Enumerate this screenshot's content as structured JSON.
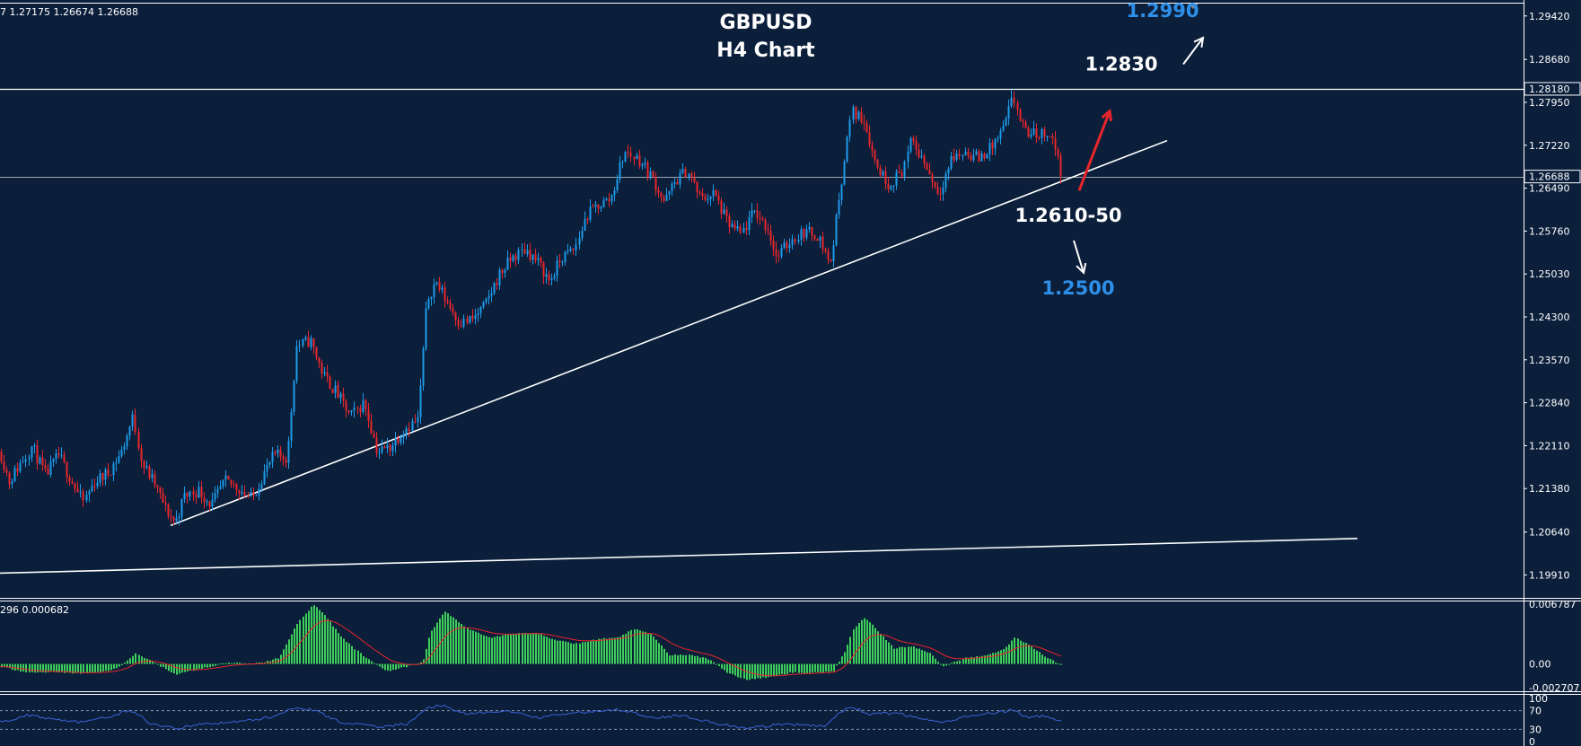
{
  "ohlc_readout": "7 1.27175 1.26674 1.26688",
  "macd_readout": "296 0.000682",
  "chart_data": {
    "type": "candlestick",
    "title": "GBPUSD",
    "subtitle": "H4 Chart",
    "colors": {
      "background": "#0b1e3a",
      "bull": "#1e9be8",
      "bear": "#e8262b",
      "grid_line": "#ffffff",
      "macd_hist": "#3ecf5a",
      "macd_signal": "#e8262b",
      "rsi_line": "#3b63d6",
      "label_blue": "#2d8fe8",
      "label_white": "#ffffff"
    },
    "price_axis": {
      "min": 1.1955,
      "max": 1.296,
      "ticks": [
        "1.29420",
        "1.28680",
        "1.27950",
        "1.27220",
        "1.26490",
        "1.25760",
        "1.25030",
        "1.24300",
        "1.23570",
        "1.22840",
        "1.22110",
        "1.21380",
        "1.20640",
        "1.19910"
      ],
      "highlighted": [
        "1.28180",
        "1.26688"
      ]
    },
    "macd_axis": {
      "min": -0.0029,
      "max": 0.0069,
      "ticks": [
        "0.006787",
        "0.00",
        "-0.002707"
      ]
    },
    "rsi_axis": {
      "min": 0,
      "max": 100,
      "ticks": [
        "100",
        "70",
        "30",
        "0"
      ],
      "levels": [
        70,
        30
      ]
    },
    "horizontal_levels": [
      1.2818,
      1.26688
    ],
    "trendlines": [
      {
        "x1": 190,
        "y1": 1.2075,
        "x2": 1300,
        "y2": 1.273
      },
      {
        "x1": 0,
        "y1": 1.1994,
        "x2": 1512,
        "y2": 1.2053
      }
    ],
    "annotations": [
      {
        "text": "1.2990",
        "color": "blue",
        "price": 1.294,
        "x": 1295
      },
      {
        "text": "1.2830",
        "color": "white",
        "price": 1.2849,
        "x": 1249
      },
      {
        "text": "1.2610-50",
        "color": "white",
        "price": 1.2592,
        "x": 1190
      },
      {
        "text": "1.2500",
        "color": "blue",
        "price": 1.2468,
        "x": 1201
      }
    ],
    "arrows": [
      {
        "color": "white",
        "from": [
          1318,
          1.286
        ],
        "to": [
          1340,
          1.2905
        ]
      },
      {
        "color": "red",
        "from": [
          1202,
          1.2645
        ],
        "to": [
          1236,
          1.278
        ]
      },
      {
        "color": "white",
        "from": [
          1196,
          1.256
        ],
        "to": [
          1207,
          1.2505
        ]
      }
    ],
    "price_path": [
      [
        0,
        1.22
      ],
      [
        10,
        1.215
      ],
      [
        20,
        1.2175
      ],
      [
        35,
        1.221
      ],
      [
        50,
        1.216
      ],
      [
        65,
        1.2195
      ],
      [
        80,
        1.215
      ],
      [
        92,
        1.2115
      ],
      [
        105,
        1.215
      ],
      [
        120,
        1.2165
      ],
      [
        135,
        1.22
      ],
      [
        148,
        1.226
      ],
      [
        158,
        1.218
      ],
      [
        172,
        1.2145
      ],
      [
        185,
        1.21
      ],
      [
        195,
        1.208
      ],
      [
        205,
        1.2125
      ],
      [
        220,
        1.2135
      ],
      [
        235,
        1.211
      ],
      [
        250,
        1.215
      ],
      [
        265,
        1.214
      ],
      [
        280,
        1.212
      ],
      [
        292,
        1.216
      ],
      [
        305,
        1.2195
      ],
      [
        320,
        1.219
      ],
      [
        330,
        1.238
      ],
      [
        345,
        1.239
      ],
      [
        360,
        1.233
      ],
      [
        375,
        1.23
      ],
      [
        390,
        1.226
      ],
      [
        405,
        1.2285
      ],
      [
        420,
        1.22
      ],
      [
        435,
        1.221
      ],
      [
        450,
        1.224
      ],
      [
        465,
        1.2255
      ],
      [
        475,
        1.246
      ],
      [
        485,
        1.249
      ],
      [
        500,
        1.245
      ],
      [
        512,
        1.242
      ],
      [
        525,
        1.2425
      ],
      [
        540,
        1.245
      ],
      [
        555,
        1.25
      ],
      [
        570,
        1.253
      ],
      [
        585,
        1.2545
      ],
      [
        600,
        1.252
      ],
      [
        612,
        1.249
      ],
      [
        625,
        1.253
      ],
      [
        640,
        1.2545
      ],
      [
        652,
        1.26
      ],
      [
        665,
        1.262
      ],
      [
        680,
        1.263
      ],
      [
        695,
        1.271
      ],
      [
        710,
        1.27
      ],
      [
        725,
        1.267
      ],
      [
        740,
        1.2625
      ],
      [
        752,
        1.266
      ],
      [
        765,
        1.268
      ],
      [
        780,
        1.263
      ],
      [
        795,
        1.264
      ],
      [
        810,
        1.259
      ],
      [
        825,
        1.257
      ],
      [
        840,
        1.261
      ],
      [
        855,
        1.258
      ],
      [
        865,
        1.253
      ],
      [
        880,
        1.256
      ],
      [
        895,
        1.2575
      ],
      [
        910,
        1.257
      ],
      [
        925,
        1.252
      ],
      [
        935,
        1.264
      ],
      [
        948,
        1.278
      ],
      [
        962,
        1.2765
      ],
      [
        975,
        1.269
      ],
      [
        990,
        1.2655
      ],
      [
        1005,
        1.268
      ],
      [
        1015,
        1.273
      ],
      [
        1030,
        1.269
      ],
      [
        1045,
        1.264
      ],
      [
        1060,
        1.27
      ],
      [
        1075,
        1.271
      ],
      [
        1090,
        1.27
      ],
      [
        1105,
        1.272
      ],
      [
        1118,
        1.275
      ],
      [
        1128,
        1.2805
      ],
      [
        1140,
        1.2745
      ],
      [
        1155,
        1.274
      ],
      [
        1168,
        1.2745
      ],
      [
        1175,
        1.272
      ],
      [
        1182,
        1.2669
      ]
    ],
    "macd_path": [
      [
        0,
        -0.0003
      ],
      [
        30,
        -0.001
      ],
      [
        60,
        -0.0009
      ],
      [
        90,
        -0.0011
      ],
      [
        120,
        -0.0008
      ],
      [
        135,
        -0.0002
      ],
      [
        150,
        0.0012
      ],
      [
        170,
        0.0002
      ],
      [
        195,
        -0.0012
      ],
      [
        220,
        -0.0006
      ],
      [
        250,
        0.0001
      ],
      [
        290,
        0.0001
      ],
      [
        310,
        0.0007
      ],
      [
        330,
        0.0045
      ],
      [
        348,
        0.0068
      ],
      [
        360,
        0.0057
      ],
      [
        380,
        0.003
      ],
      [
        405,
        0.0008
      ],
      [
        430,
        -0.0008
      ],
      [
        450,
        -0.0004
      ],
      [
        470,
        0.0002
      ],
      [
        478,
        0.0035
      ],
      [
        495,
        0.006
      ],
      [
        520,
        0.004
      ],
      [
        545,
        0.003
      ],
      [
        570,
        0.0034
      ],
      [
        595,
        0.0036
      ],
      [
        615,
        0.0028
      ],
      [
        640,
        0.0023
      ],
      [
        665,
        0.0028
      ],
      [
        690,
        0.0031
      ],
      [
        705,
        0.004
      ],
      [
        725,
        0.0034
      ],
      [
        745,
        0.001
      ],
      [
        770,
        0.001
      ],
      [
        790,
        0.0005
      ],
      [
        810,
        -0.001
      ],
      [
        830,
        -0.0018
      ],
      [
        855,
        -0.0015
      ],
      [
        880,
        -0.001
      ],
      [
        905,
        -0.001
      ],
      [
        928,
        -0.0008
      ],
      [
        940,
        0.0013
      ],
      [
        950,
        0.004
      ],
      [
        962,
        0.0053
      ],
      [
        975,
        0.004
      ],
      [
        995,
        0.0018
      ],
      [
        1015,
        0.002
      ],
      [
        1035,
        0.0012
      ],
      [
        1050,
        -0.0003
      ],
      [
        1075,
        0.0007
      ],
      [
        1100,
        0.001
      ],
      [
        1118,
        0.0017
      ],
      [
        1130,
        0.003
      ],
      [
        1145,
        0.0022
      ],
      [
        1165,
        0.0007
      ],
      [
        1182,
        -0.0001
      ]
    ],
    "rsi_path": [
      [
        0,
        45
      ],
      [
        30,
        60
      ],
      [
        60,
        52
      ],
      [
        90,
        45
      ],
      [
        120,
        55
      ],
      [
        145,
        72
      ],
      [
        170,
        40
      ],
      [
        195,
        32
      ],
      [
        230,
        42
      ],
      [
        260,
        45
      ],
      [
        300,
        55
      ],
      [
        330,
        78
      ],
      [
        350,
        70
      ],
      [
        380,
        45
      ],
      [
        420,
        35
      ],
      [
        455,
        42
      ],
      [
        478,
        78
      ],
      [
        495,
        80
      ],
      [
        520,
        62
      ],
      [
        560,
        70
      ],
      [
        600,
        55
      ],
      [
        640,
        65
      ],
      [
        690,
        72
      ],
      [
        730,
        55
      ],
      [
        760,
        60
      ],
      [
        800,
        42
      ],
      [
        830,
        32
      ],
      [
        870,
        40
      ],
      [
        920,
        38
      ],
      [
        932,
        62
      ],
      [
        948,
        78
      ],
      [
        970,
        62
      ],
      [
        1000,
        65
      ],
      [
        1030,
        50
      ],
      [
        1050,
        44
      ],
      [
        1080,
        60
      ],
      [
        1110,
        65
      ],
      [
        1128,
        72
      ],
      [
        1145,
        55
      ],
      [
        1160,
        58
      ],
      [
        1182,
        50
      ]
    ]
  }
}
